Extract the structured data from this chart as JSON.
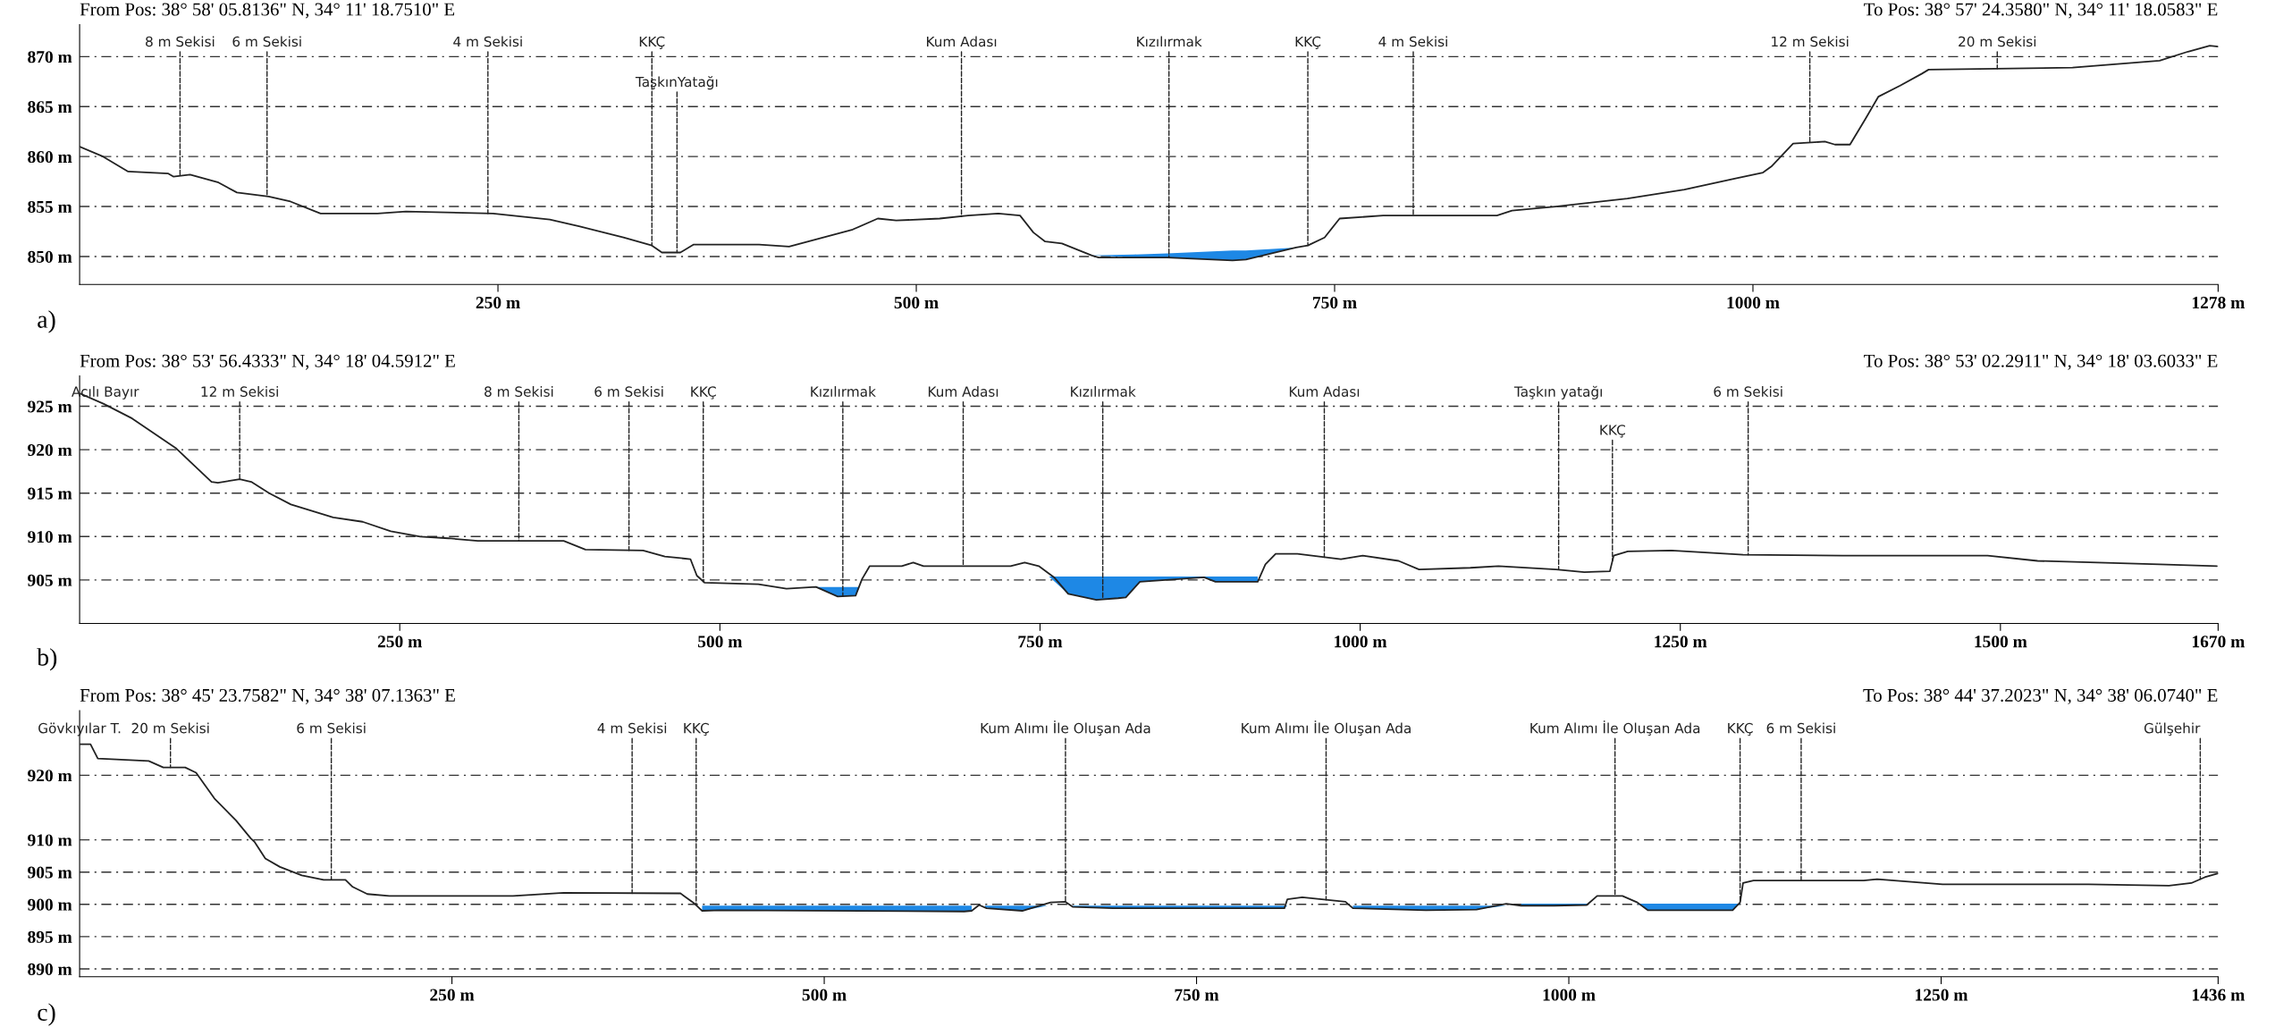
{
  "chart_data": [
    {
      "type": "line",
      "xlim": [
        0,
        1278
      ],
      "ylim": [
        847.2,
        873.2
      ],
      "xticks": [
        {
          "value": 250,
          "label": "250 m"
        },
        {
          "value": 500,
          "label": "500 m"
        },
        {
          "value": 750,
          "label": "750 m"
        },
        {
          "value": 1000,
          "label": "1000 m"
        },
        {
          "value": 1278,
          "label": "1278 m"
        }
      ],
      "yticks": [
        {
          "value": 850,
          "label": "850 m"
        },
        {
          "value": 855,
          "label": "855 m"
        },
        {
          "value": 860,
          "label": "860 m"
        },
        {
          "value": 865,
          "label": "865 m"
        },
        {
          "value": 870,
          "label": "870 m"
        }
      ],
      "grid": "y",
      "series": [
        {
          "type": "area",
          "color": "#1e88e5",
          "x": [
            605,
            630,
            650,
            689,
            697,
            727,
            735
          ],
          "values": [
            850.1,
            850.2,
            850.3,
            850.6,
            850.6,
            850.9,
            850.9
          ]
        },
        {
          "color": "#222222",
          "x": [
            0,
            14,
            29,
            53,
            56,
            66,
            83,
            94,
            113,
            126,
            144,
            178,
            195,
            247,
            281,
            299,
            325,
            342,
            348,
            359,
            367,
            406,
            424,
            462,
            477,
            488,
            514,
            531,
            549,
            562,
            570,
            577,
            587,
            605,
            609,
            650,
            689,
            697,
            727,
            734,
            744,
            753,
            779,
            847,
            856,
            882,
            925,
            959,
            989,
            1006,
            1011,
            1024,
            1043,
            1049,
            1058,
            1067,
            1075,
            1088,
            1101,
            1105,
            1191,
            1243,
            1260,
            1273,
            1278
          ],
          "values": [
            861.0,
            860.0,
            858.5,
            858.3,
            858.0,
            858.2,
            857.4,
            856.4,
            856.0,
            855.5,
            854.3,
            854.3,
            854.5,
            854.3,
            853.7,
            853.0,
            851.9,
            851.1,
            850.4,
            850.4,
            851.2,
            851.2,
            851.0,
            852.7,
            853.8,
            853.6,
            853.8,
            854.1,
            854.3,
            854.1,
            852.4,
            851.5,
            851.3,
            850.1,
            849.9,
            849.9,
            849.6,
            849.7,
            850.9,
            851.1,
            851.9,
            853.8,
            854.1,
            854.1,
            854.6,
            855.0,
            855.8,
            856.7,
            857.8,
            858.4,
            859.0,
            861.3,
            861.5,
            861.2,
            861.2,
            863.7,
            866.0,
            867.1,
            868.3,
            868.7,
            868.9,
            869.6,
            870.5,
            871.1,
            871.0
          ]
        }
      ],
      "annotations": [
        "From Pos: 38° 58' 05.8136\" N, 34° 11' 18.7510\" E",
        "To Pos: 38° 57' 24.3580\" N, 34° 11' 18.0583\" E",
        "a)",
        {
          "text": "8 m Sekisi",
          "x": 60,
          "y": 858.1
        },
        {
          "text": "6 m Sekisi",
          "x": 112,
          "y": 856.0
        },
        {
          "text": "4 m Sekisi",
          "x": 244,
          "y": 854.3
        },
        {
          "text": "KKÇ",
          "x": 342,
          "y": 851.1
        },
        {
          "text": "TaşkınYatağı",
          "x": 357,
          "y": 850.4
        },
        {
          "text": "Kum Adası",
          "x": 527,
          "y": 854.0
        },
        {
          "text": "Kızılırmak",
          "x": 651,
          "y": 849.9
        },
        {
          "text": "KKÇ",
          "x": 734,
          "y": 851.1
        },
        {
          "text": "4 m Sekisi",
          "x": 797,
          "y": 854.1
        },
        {
          "text": "12 m Sekisi",
          "x": 1034,
          "y": 861.4
        },
        {
          "text": "20 m Sekisi",
          "x": 1146,
          "y": 868.8
        }
      ]
    },
    {
      "type": "line",
      "xlim": [
        0,
        1670
      ],
      "ylim": [
        900,
        928.5
      ],
      "xticks": [
        {
          "value": 250,
          "label": "250 m"
        },
        {
          "value": 500,
          "label": "500 m"
        },
        {
          "value": 750,
          "label": "750 m"
        },
        {
          "value": 1000,
          "label": "1000 m"
        },
        {
          "value": 1250,
          "label": "1250 m"
        },
        {
          "value": 1500,
          "label": "1500 m"
        },
        {
          "value": 1670,
          "label": "1670 m"
        }
      ],
      "yticks": [
        {
          "value": 905,
          "label": "905 m"
        },
        {
          "value": 910,
          "label": "910 m"
        },
        {
          "value": 915,
          "label": "915 m"
        },
        {
          "value": 920,
          "label": "920 m"
        },
        {
          "value": 925,
          "label": "925 m"
        }
      ],
      "grid": "y",
      "series": [
        {
          "type": "area",
          "color": "#1e88e5",
          "x": [
            575,
            592,
            606,
            608,
            null,
            757,
            772,
            794,
            811,
            817,
            828,
            878,
            887,
            920
          ],
          "values": [
            904.2,
            904.2,
            904.2,
            904.2,
            null,
            905.4,
            905.4,
            905.4,
            905.4,
            905.4,
            905.4,
            905.4,
            905.4,
            905.4
          ]
        },
        {
          "color": "#222222",
          "x": [
            0,
            18.5,
            41,
            75,
            103,
            108,
            125,
            134,
            148,
            165,
            198,
            221,
            243,
            266,
            288,
            311,
            378,
            395,
            440,
            457,
            477,
            482,
            488,
            530,
            552,
            575,
            592,
            606,
            611,
            617,
            642,
            651,
            659,
            727,
            738,
            749,
            761,
            772,
            794,
            811,
            817,
            828,
            878,
            887,
            920,
            926,
            934,
            951,
            985,
            1002,
            1030,
            1046,
            1086,
            1108,
            1153,
            1175,
            1195,
            1198,
            1209,
            1243,
            1299,
            1377,
            1490,
            1529,
            1624,
            1669
          ],
          "values": [
            926.5,
            925.3,
            923.6,
            920.2,
            916.3,
            916.2,
            916.6,
            916.3,
            915.0,
            913.7,
            912.2,
            911.7,
            910.6,
            910.0,
            909.8,
            909.5,
            909.5,
            908.5,
            908.4,
            907.7,
            907.4,
            905.5,
            904.7,
            904.5,
            904.0,
            904.2,
            903.1,
            903.2,
            905.1,
            906.6,
            906.6,
            907.0,
            906.6,
            906.6,
            907.0,
            906.6,
            905.3,
            903.4,
            902.7,
            902.9,
            903.0,
            904.8,
            905.3,
            904.8,
            904.8,
            906.8,
            908.0,
            908.0,
            907.4,
            907.8,
            907.2,
            906.2,
            906.4,
            906.6,
            906.2,
            905.9,
            906.0,
            907.8,
            908.3,
            908.4,
            907.9,
            907.8,
            907.8,
            907.2,
            906.8,
            906.6
          ]
        }
      ],
      "annotations": [
        "From Pos: 38° 53' 56.4333\" N, 34° 18' 04.5912\" E",
        "To Pos: 38° 53' 02.2911\" N, 34° 18' 03.6033\" E",
        "b)",
        {
          "text": "Acılı Bayır",
          "x": 20,
          "y": 925.2
        },
        {
          "text": "12 m Sekisi",
          "x": 125,
          "y": 916.6
        },
        {
          "text": "8 m Sekisi",
          "x": 343,
          "y": 909.5
        },
        {
          "text": "6 m Sekisi",
          "x": 429,
          "y": 908.4
        },
        {
          "text": "KKÇ",
          "x": 487,
          "y": 904.8
        },
        {
          "text": "Kızılırmak",
          "x": 596,
          "y": 903.1
        },
        {
          "text": "Kum Adası",
          "x": 690,
          "y": 906.6
        },
        {
          "text": "Kızılırmak",
          "x": 799,
          "y": 902.8
        },
        {
          "text": "Kum Adası",
          "x": 972,
          "y": 907.6
        },
        {
          "text": "Taşkın yatağı",
          "x": 1155,
          "y": 906.2
        },
        {
          "text": "KKÇ",
          "x": 1197,
          "y": 907.2
        },
        {
          "text": "6 m Sekisi",
          "x": 1303,
          "y": 907.9
        }
      ]
    },
    {
      "type": "line",
      "xlim": [
        0,
        1436
      ],
      "ylim": [
        888.8,
        930
      ],
      "xticks": [
        {
          "value": 250,
          "label": "250 m"
        },
        {
          "value": 500,
          "label": "500 m"
        },
        {
          "value": 750,
          "label": "750 m"
        },
        {
          "value": 1000,
          "label": "1000 m"
        },
        {
          "value": 1250,
          "label": "1250 m"
        },
        {
          "value": 1436,
          "label": "1436 m"
        }
      ],
      "yticks": [
        {
          "value": 890,
          "label": "890 m"
        },
        {
          "value": 895,
          "label": "895 m"
        },
        {
          "value": 900,
          "label": "900 m"
        },
        {
          "value": 905,
          "label": "905 m"
        },
        {
          "value": 910,
          "label": "910 m"
        },
        {
          "value": 920,
          "label": "920 m"
        }
      ],
      "grid": "y",
      "series": [
        {
          "type": "area",
          "color": "#1e88e5",
          "x": [
            418,
            430,
            594,
            599,
            null,
            608,
            633,
            650,
            null,
            667,
            694,
            809,
            811,
            null,
            855,
            904,
            938,
            958,
            null,
            968,
            990,
            1012,
            null,
            1046,
            1053,
            1110,
            1115
          ],
          "values": [
            899.8,
            899.8,
            899.8,
            899.8,
            null,
            899.8,
            899.8,
            899.8,
            null,
            899.8,
            899.8,
            899.8,
            899.8,
            null,
            899.8,
            899.8,
            899.8,
            899.8,
            null,
            900.1,
            900.1,
            900.1,
            null,
            900.1,
            900.1,
            900.1,
            900.1
          ]
        },
        {
          "color": "#222222",
          "x": [
            0,
            7.3,
            12.2,
            46.4,
            56.2,
            70.9,
            78.2,
            90.5,
            105,
            115,
            117.4,
            124.7,
            134.5,
            149.2,
            163.9,
            178.5,
            183.4,
            193.2,
            208,
            291,
            325,
            403.5,
            413,
            418,
            430,
            594,
            599,
            604,
            609,
            633,
            652,
            662,
            667,
            694,
            809,
            811,
            821,
            850,
            855,
            904,
            938,
            958,
            968,
            990,
            1012,
            1019,
            1036,
            1046,
            1053,
            1110,
            1115,
            1117,
            1124,
            1198,
            1207,
            1251,
            1349,
            1403,
            1418,
            1427,
            1436
          ],
          "values": [
            924.8,
            924.8,
            922.6,
            922.2,
            921.2,
            921.2,
            920.4,
            916.4,
            913.0,
            910.2,
            909.7,
            907.1,
            905.8,
            904.5,
            903.8,
            903.8,
            902.7,
            901.6,
            901.3,
            901.3,
            901.8,
            901.7,
            900.1,
            899.0,
            899.1,
            898.9,
            899.0,
            899.9,
            899.4,
            899.0,
            900.3,
            900.4,
            899.6,
            899.4,
            899.4,
            900.8,
            901.1,
            900.4,
            899.4,
            899.1,
            899.2,
            900.1,
            899.8,
            899.8,
            899.9,
            901.3,
            901.3,
            900.3,
            899.1,
            899.1,
            900.3,
            903.3,
            903.7,
            903.7,
            903.9,
            903.1,
            903.1,
            902.9,
            903.3,
            904.2,
            904.8
          ]
        }
      ],
      "annotations": [
        "From Pos: 38° 45' 23.7582\" N, 34° 38' 07.1363\" E",
        "To Pos: 38° 44' 37.2023\" N, 34° 38' 06.0740\" E",
        "c)",
        {
          "text": "Gövkıyılar T.",
          "x": 0,
          "y": 924.8
        },
        {
          "text": "20 m Sekisi",
          "x": 61,
          "y": 921.2
        },
        {
          "text": "6 m Sekisi",
          "x": 169,
          "y": 903.8
        },
        {
          "text": "4 m Sekisi",
          "x": 371,
          "y": 901.7
        },
        {
          "text": "KKÇ",
          "x": 414,
          "y": 899.9
        },
        {
          "text": "Kum Alımı İle Oluşan Ada",
          "x": 662,
          "y": 900.4
        },
        {
          "text": "Kum Alımı İle Oluşan Ada",
          "x": 837,
          "y": 900.7
        },
        {
          "text": "Kum Alımı İle Oluşan Ada",
          "x": 1031,
          "y": 901.3
        },
        {
          "text": "KKÇ",
          "x": 1115,
          "y": 900.3
        },
        {
          "text": "6 m Sekisi",
          "x": 1156,
          "y": 903.7
        },
        {
          "text": "Gülşehir",
          "x": 1424,
          "y": 903.9
        }
      ]
    }
  ]
}
